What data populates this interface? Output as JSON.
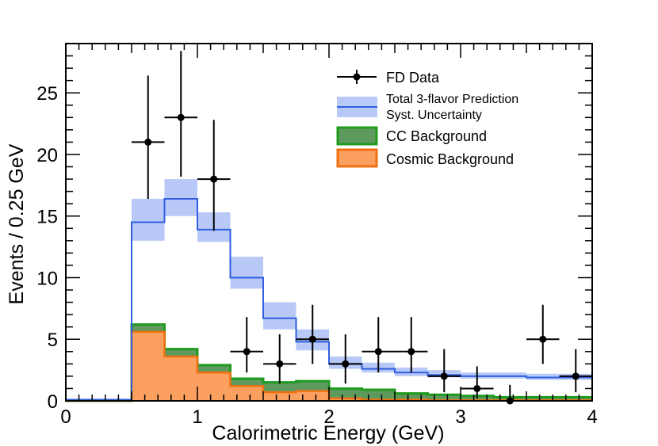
{
  "chart_data": {
    "type": "histogram",
    "xlabel": "Calorimetric Energy (GeV)",
    "ylabel": "Events / 0.25 GeV",
    "xlim": [
      0,
      4
    ],
    "ylim": [
      0,
      29
    ],
    "x_ticks": [
      "0",
      "1",
      "2",
      "3",
      "4"
    ],
    "y_ticks": [
      "0",
      "5",
      "10",
      "15",
      "20",
      "25"
    ],
    "x_tick_values": [
      0,
      1,
      2,
      3,
      4
    ],
    "y_tick_values": [
      0,
      5,
      10,
      15,
      20,
      25
    ],
    "bin_edges": [
      0,
      0.25,
      0.5,
      0.75,
      1.0,
      1.25,
      1.5,
      1.75,
      2.0,
      2.25,
      2.5,
      2.75,
      3.0,
      3.25,
      3.5,
      3.75,
      4.0
    ],
    "legend_position": "top-right",
    "legend": {
      "data": "FD Data",
      "prediction_line1": "Total 3-flavor Prediction",
      "prediction_line2": "Syst. Uncertainty",
      "cc": "CC Background",
      "cosmic": "Cosmic Background"
    },
    "colors": {
      "prediction": "#2f5fe0",
      "uncertainty": "#b9c9f7",
      "cc": "#1f9b1f",
      "cc_fill": "#5e9a5e",
      "cosmic": "#f07010",
      "cosmic_fill": "#fca060",
      "data": "#000000"
    },
    "series": [
      {
        "name": "Total 3-flavor Prediction",
        "values": [
          0.1,
          0.1,
          14.5,
          16.4,
          13.9,
          10.0,
          6.7,
          4.8,
          3.0,
          2.6,
          2.3,
          2.1,
          2.0,
          2.0,
          1.9,
          1.9
        ]
      },
      {
        "name": "Syst. Uncertainty",
        "lower": [
          0.1,
          0.1,
          13.0,
          15.0,
          12.9,
          9.1,
          5.8,
          4.1,
          2.6,
          2.3,
          2.0,
          1.9,
          1.8,
          1.8,
          1.7,
          1.7
        ],
        "upper": [
          0.1,
          0.1,
          16.4,
          18.0,
          15.3,
          11.7,
          8.0,
          5.8,
          3.6,
          3.1,
          2.7,
          2.5,
          2.3,
          2.3,
          2.2,
          2.2
        ]
      },
      {
        "name": "CC Background",
        "values": [
          0.0,
          0.0,
          6.2,
          4.2,
          2.9,
          1.8,
          1.5,
          1.6,
          1.0,
          0.9,
          0.6,
          0.5,
          0.4,
          0.3,
          0.3,
          0.3
        ]
      },
      {
        "name": "Cosmic Background",
        "values": [
          0.0,
          0.0,
          5.6,
          3.6,
          2.3,
          1.2,
          0.7,
          0.8,
          0.2,
          0.1,
          0.1,
          0.05,
          0.05,
          0.05,
          0.05,
          0.05
        ]
      },
      {
        "name": "FD Data",
        "x": [
          0.625,
          0.875,
          1.125,
          1.375,
          1.625,
          1.875,
          2.125,
          2.375,
          2.625,
          2.875,
          3.125,
          3.375,
          3.625,
          3.875
        ],
        "y": [
          21,
          23,
          18,
          4,
          3,
          5,
          3,
          4,
          4,
          2,
          1,
          0,
          5,
          2
        ],
        "y_err_low": [
          4.6,
          4.8,
          4.2,
          1.7,
          1.6,
          2.0,
          1.6,
          1.7,
          1.7,
          1.3,
          0.8,
          0.0,
          2.0,
          1.3
        ],
        "y_err_high": [
          5.4,
          5.4,
          4.8,
          2.8,
          2.4,
          2.8,
          2.4,
          2.8,
          2.8,
          2.2,
          1.8,
          1.3,
          2.8,
          2.2
        ],
        "x_err": 0.125
      }
    ]
  }
}
